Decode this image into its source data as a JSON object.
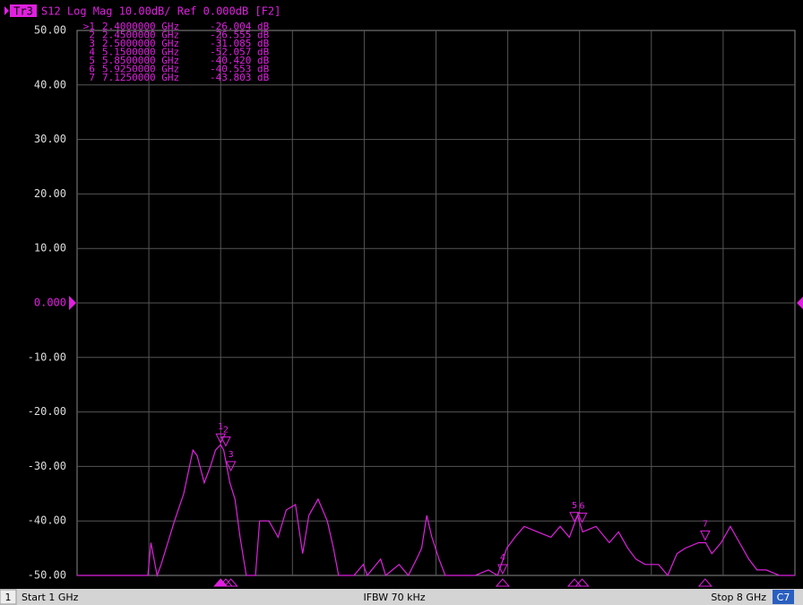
{
  "chart_data": {
    "type": "line",
    "header": {
      "trace": "Tr3",
      "title": "S12 Log Mag 10.00dB/ Ref 0.000dB [F2]"
    },
    "footer": {
      "channel": "1",
      "start": "Start 1 GHz",
      "ifbw": "IFBW 70 kHz",
      "stop": "Stop 8 GHz",
      "channel_tag": "C7"
    },
    "xlim": [
      1,
      8
    ],
    "ylim": [
      -50,
      50
    ],
    "yticks": [
      {
        "value": 50,
        "label": "50.00"
      },
      {
        "value": 40,
        "label": "40.00"
      },
      {
        "value": 30,
        "label": "30.00"
      },
      {
        "value": 20,
        "label": "20.00"
      },
      {
        "value": 10,
        "label": "10.00"
      },
      {
        "value": 0,
        "label": "0.000"
      },
      {
        "value": -10,
        "label": "-10.00"
      },
      {
        "value": -20,
        "label": "-20.00"
      },
      {
        "value": -30,
        "label": "-30.00"
      },
      {
        "value": -40,
        "label": "-40.00"
      },
      {
        "value": -50,
        "label": "-50.00"
      }
    ],
    "grid": true,
    "reference": 0,
    "x": [
      1.0,
      1.69,
      1.72,
      1.78,
      1.82,
      1.95,
      2.04,
      2.13,
      2.17,
      2.24,
      2.3,
      2.35,
      2.4,
      2.43,
      2.49,
      2.54,
      2.59,
      2.65,
      2.74,
      2.78,
      2.87,
      2.96,
      3.04,
      3.13,
      3.2,
      3.26,
      3.35,
      3.44,
      3.5,
      3.55,
      3.7,
      3.79,
      3.83,
      3.96,
      4.01,
      4.14,
      4.23,
      4.31,
      4.36,
      4.41,
      4.46,
      4.53,
      4.59,
      4.88,
      5.01,
      5.1,
      5.19,
      5.27,
      5.36,
      5.49,
      5.62,
      5.71,
      5.8,
      5.88,
      5.93,
      6.06,
      6.19,
      6.28,
      6.37,
      6.45,
      6.54,
      6.67,
      6.76,
      6.85,
      6.93,
      7.06,
      7.13,
      7.19,
      7.28,
      7.37,
      7.46,
      7.55,
      7.63,
      7.72,
      7.85,
      8.0
    ],
    "series": [
      {
        "name": "S12",
        "color": "#e020e0",
        "values": [
          -50,
          -50,
          -44,
          -50,
          -48,
          -40,
          -35,
          -27,
          -28,
          -33,
          -30,
          -27,
          -26,
          -27,
          -33,
          -36,
          -43,
          -50,
          -50,
          -40,
          -40,
          -43,
          -38,
          -37,
          -46,
          -39,
          -36,
          -40,
          -45,
          -50,
          -50,
          -48,
          -50,
          -47,
          -50,
          -48,
          -50,
          -47,
          -45,
          -39,
          -43,
          -47,
          -50,
          -50,
          -49,
          -50,
          -45,
          -43,
          -41,
          -42,
          -43,
          -41,
          -43,
          -39,
          -42,
          -41,
          -44,
          -42,
          -45,
          -47,
          -48,
          -48,
          -50,
          -46,
          -45,
          -44,
          -44,
          -46,
          -44,
          -41,
          -44,
          -47,
          -49,
          -49,
          -50,
          -50
        ]
      }
    ],
    "markers": [
      {
        "table_label": ">1",
        "label": "1",
        "x": 2.4,
        "x_label": "2.4000000 GHz",
        "y": -26.004,
        "y_label": "-26.004 dB",
        "active": true
      },
      {
        "table_label": "2",
        "label": "2",
        "x": 2.45,
        "x_label": "2.4500000 GHz",
        "y": -26.555,
        "y_label": "-26.555 dB"
      },
      {
        "table_label": "3",
        "label": "3",
        "x": 2.5,
        "x_label": "2.5000000 GHz",
        "y": -31.085,
        "y_label": "-31.085 dB"
      },
      {
        "table_label": "4",
        "label": "4",
        "x": 5.15,
        "x_label": "5.1500000 GHz",
        "y": -52.057,
        "y_label": "-52.057 dB"
      },
      {
        "table_label": "5",
        "label": "5",
        "x": 5.85,
        "x_label": "5.8500000 GHz",
        "y": -40.42,
        "y_label": "-40.420 dB"
      },
      {
        "table_label": "6",
        "label": "6",
        "x": 5.925,
        "x_label": "5.9250000 GHz",
        "y": -40.553,
        "y_label": "-40.553 dB"
      },
      {
        "table_label": "7",
        "label": "7",
        "x": 7.125,
        "x_label": "7.1250000 GHz",
        "y": -43.803,
        "y_label": "-43.803 dB"
      }
    ]
  }
}
